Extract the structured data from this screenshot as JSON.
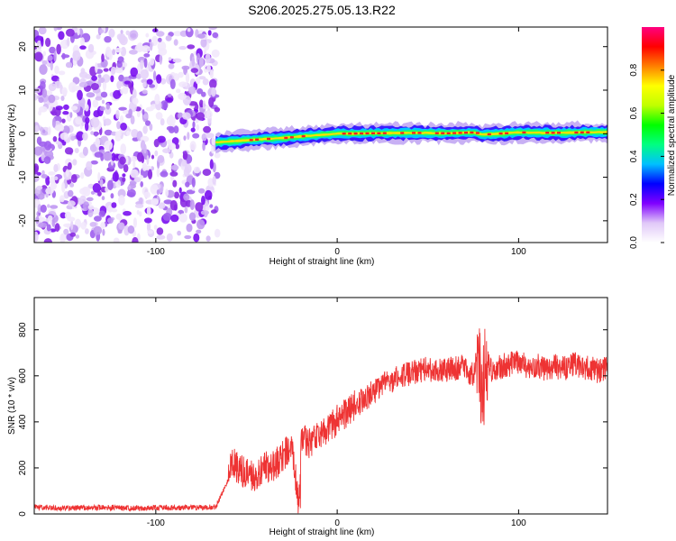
{
  "title": "S206.2025.275.05.13.R22",
  "chart_data": [
    {
      "type": "heatmap",
      "name": "spectrogram",
      "xlabel": "Height of straight line (km)",
      "ylabel": "Frequency (Hz)",
      "xlim": [
        -167,
        149
      ],
      "ylim": [
        -25,
        24.5
      ],
      "xticks": [
        -100,
        0,
        100
      ],
      "xtick_labels": [
        "-100",
        "0",
        "100"
      ],
      "yticks": [
        -20,
        -10,
        0,
        10,
        20
      ],
      "ytick_labels": [
        "-20",
        "-10",
        "0",
        "10",
        "20"
      ],
      "noise_region_x": [
        -167,
        -67
      ],
      "signal_track": {
        "x": [
          -67,
          -60,
          -50,
          -40,
          -30,
          -20,
          -10,
          0,
          20,
          40,
          60,
          75,
          80,
          100,
          120,
          149
        ],
        "frequency": [
          -2.0,
          -1.8,
          -1.5,
          -1.2,
          -1.0,
          -0.6,
          -0.3,
          0.0,
          0.1,
          0.2,
          0.1,
          0.3,
          -0.2,
          0.3,
          0.2,
          0.4
        ]
      },
      "colorbar": {
        "label": "Normalized spectral amplitude",
        "range": [
          0.0,
          1.0
        ],
        "ticks": [
          0.0,
          0.2,
          0.4,
          0.6,
          0.8
        ],
        "tick_labels": [
          "0.0",
          "0.2",
          "0.4",
          "0.6",
          "0.8"
        ],
        "colors": [
          "#ffffff",
          "#e0c8f8",
          "#8000ff",
          "#0000ff",
          "#00c0ff",
          "#00ff80",
          "#00ff00",
          "#c0ff00",
          "#ffff00",
          "#ff8000",
          "#ff0000",
          "#ff0080"
        ]
      }
    },
    {
      "type": "line",
      "name": "snr",
      "xlabel": "Height of straight line (km)",
      "ylabel": "SNR (10 * v/v)",
      "xlim": [
        -167,
        149
      ],
      "ylim": [
        0,
        940
      ],
      "xticks": [
        -100,
        0,
        100
      ],
      "xtick_labels": [
        "-100",
        "0",
        "100"
      ],
      "yticks": [
        0,
        200,
        400,
        600,
        800
      ],
      "ytick_labels": [
        "0",
        "200",
        "400",
        "600",
        "800"
      ],
      "color": "#ee3333",
      "series": [
        {
          "name": "SNR",
          "x": [
            -167,
            -150,
            -130,
            -110,
            -90,
            -75,
            -67,
            -60,
            -58,
            -55,
            -50,
            -45,
            -40,
            -35,
            -30,
            -25,
            -21,
            -20,
            -15,
            -10,
            -5,
            0,
            5,
            10,
            15,
            20,
            25,
            30,
            35,
            40,
            45,
            50,
            55,
            60,
            65,
            70,
            75,
            78,
            80,
            82,
            85,
            90,
            95,
            100,
            105,
            110,
            115,
            120,
            125,
            130,
            135,
            140,
            145,
            149
          ],
          "y": [
            30,
            25,
            28,
            25,
            27,
            28,
            30,
            150,
            240,
            200,
            170,
            160,
            200,
            210,
            250,
            300,
            40,
            330,
            310,
            340,
            370,
            410,
            440,
            470,
            500,
            530,
            560,
            580,
            600,
            610,
            620,
            630,
            620,
            625,
            630,
            640,
            600,
            700,
            470,
            680,
            620,
            640,
            650,
            660,
            640,
            650,
            620,
            640,
            630,
            650,
            640,
            630,
            620,
            640
          ]
        }
      ]
    }
  ]
}
